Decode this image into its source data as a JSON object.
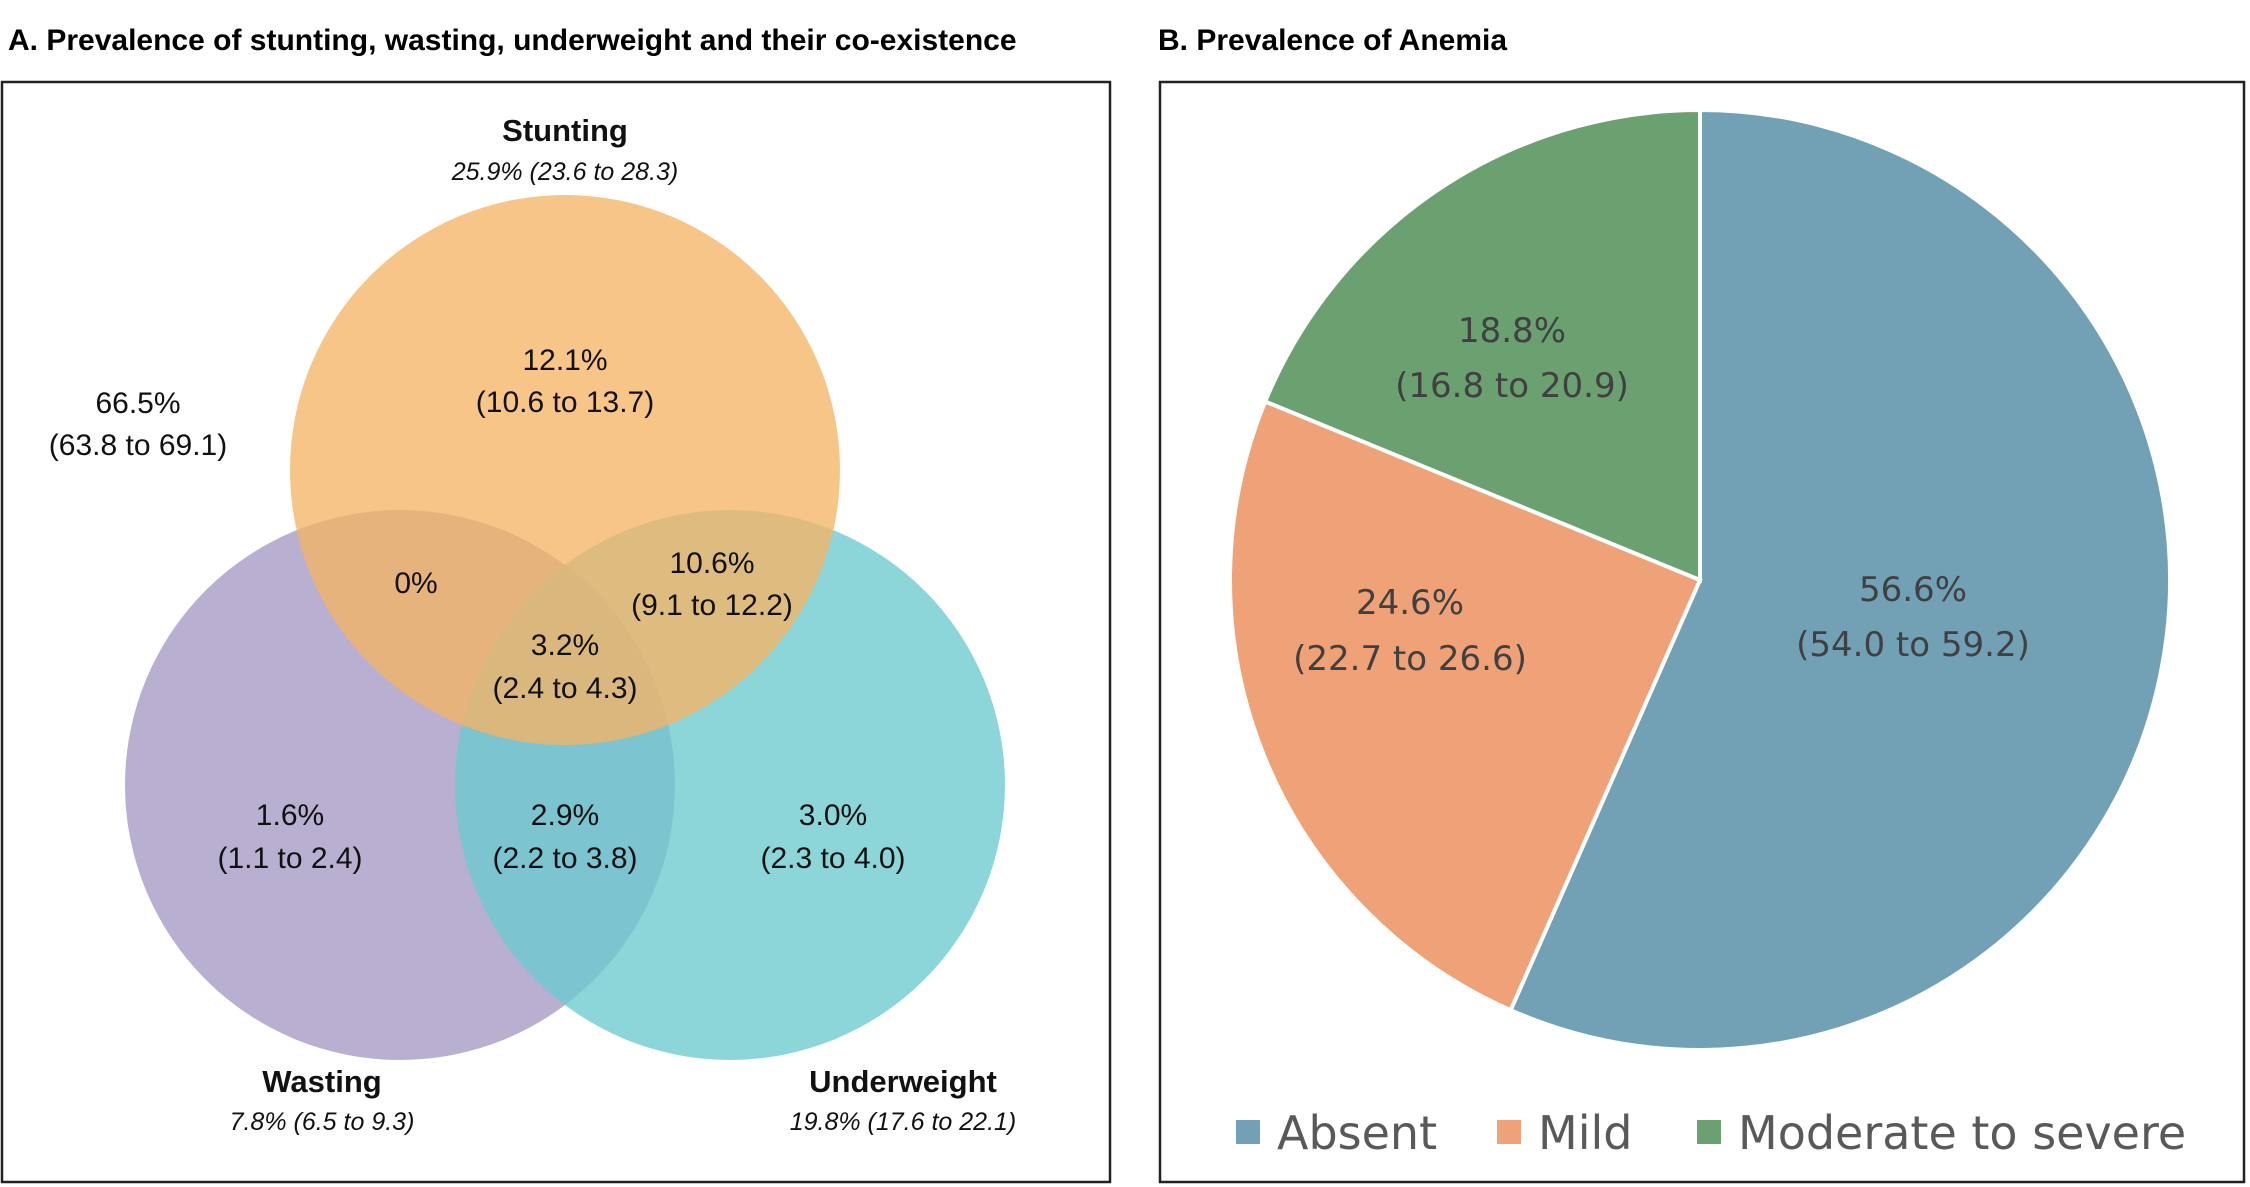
{
  "chart_data": [
    {
      "type": "venn",
      "title": "A. Prevalence of stunting, wasting, underweight and their co-existence",
      "colors": {
        "stunting": "#F5B565",
        "wasting": "#A498C4",
        "underweight": "#6CCAD0"
      },
      "sets": [
        {
          "key": "stunting",
          "name": "Stunting",
          "value": "25.9% (23.6 to 28.3)"
        },
        {
          "key": "wasting",
          "name": "Wasting",
          "value": "7.8% (6.5 to 9.3)"
        },
        {
          "key": "underweight",
          "name": "Underweight",
          "value": "19.8% (17.6 to 22.1)"
        }
      ],
      "regions": [
        {
          "key": "none",
          "pct": "66.5%",
          "ci": "(63.8 to 69.1)"
        },
        {
          "key": "stunting_only",
          "pct": "12.1%",
          "ci": "(10.6 to 13.7)"
        },
        {
          "key": "stunting_wasting",
          "pct": "0%",
          "ci": ""
        },
        {
          "key": "stunting_underweight",
          "pct": "10.6%",
          "ci": "(9.1 to 12.2)"
        },
        {
          "key": "all_three",
          "pct": "3.2%",
          "ci": "(2.4 to 4.3)"
        },
        {
          "key": "wasting_only",
          "pct": "1.6%",
          "ci": "(1.1 to 2.4)"
        },
        {
          "key": "wasting_underweight",
          "pct": "2.9%",
          "ci": "(2.2 to 3.8)"
        },
        {
          "key": "underweight_only",
          "pct": "3.0%",
          "ci": "(2.3 to 4.0)"
        }
      ]
    },
    {
      "type": "pie",
      "title": "B. Prevalence of Anemia",
      "legend_position": "bottom",
      "slices": [
        {
          "name": "Absent",
          "value": 56.6,
          "label": "56.6%",
          "ci": "(54.0 to 59.2)",
          "color": "#72A1B6"
        },
        {
          "name": "Mild",
          "value": 24.6,
          "label": "24.6%",
          "ci": "(22.7 to 26.6)",
          "color": "#EFA178"
        },
        {
          "name": "Moderate to severe",
          "value": 18.8,
          "label": "18.8%",
          "ci": "(16.8 to 20.9)",
          "color": "#6BA070"
        }
      ]
    }
  ]
}
